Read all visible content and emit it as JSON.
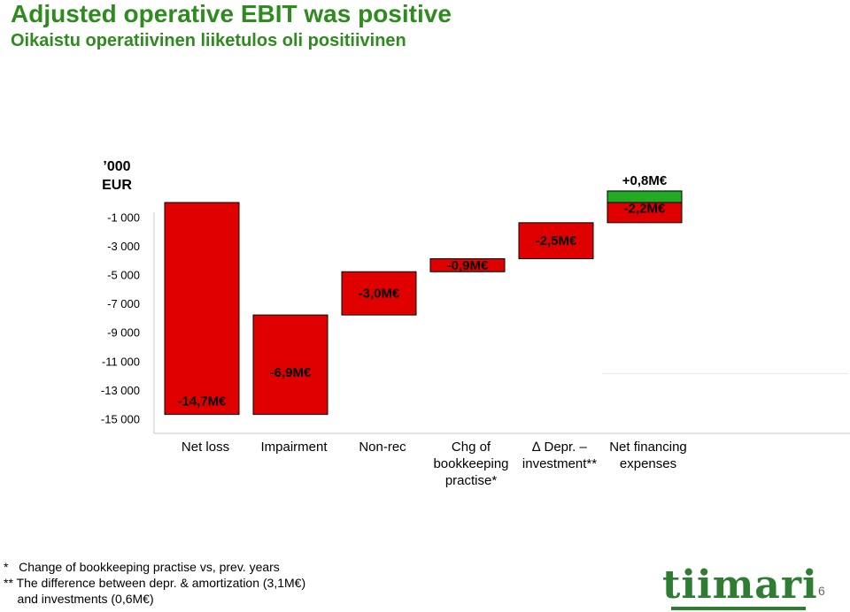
{
  "title": "Adjusted operative EBIT was positive",
  "subtitle": "Oikaistu operatiivinen liiketulos oli positiivinen",
  "page_number": "6",
  "logo_text": "tiimari",
  "footnotes": [
    "*   Change of bookkeeping practise vs, prev. years",
    "** The difference between depr. & amortization (3,1M€)",
    "    and investments (0,6M€)"
  ],
  "colors": {
    "title": "#2e8b1e",
    "negative": "#e00000",
    "positive": "#22aa22",
    "logo": "#2e7d32"
  },
  "chart_data": {
    "type": "bar",
    "subtype": "waterfall",
    "unit_label": "’000 EUR",
    "ylim": [
      -15000,
      0
    ],
    "yticks": [
      -1000,
      -3000,
      -5000,
      -7000,
      -9000,
      -11000,
      -13000,
      -15000
    ],
    "ytick_labels": [
      "-1 000",
      "-3 000",
      "-5 000",
      "-7 000",
      "-9 000",
      "-11 000",
      "-13 000",
      "-15 000"
    ],
    "grid": false,
    "categories": [
      "Net loss",
      "Impairment",
      "Non-rec",
      "Chg of bookkeeping practise*",
      "∆ Depr. – investment**",
      "Net financing expenses"
    ],
    "category_lines": [
      [
        "Net loss"
      ],
      [
        "Impairment"
      ],
      [
        "Non-rec"
      ],
      [
        "Chg of",
        "bookkeeping",
        "practise*"
      ],
      [
        "∆ Depr. –",
        "investment**"
      ],
      [
        "Net financing",
        "expenses"
      ]
    ],
    "bars": [
      {
        "start": -14700,
        "end": 0,
        "color": "#e00000",
        "label": "-14,7M€"
      },
      {
        "start": -14700,
        "end": -7800,
        "color": "#e00000",
        "label": "-6,9M€"
      },
      {
        "start": -7800,
        "end": -4800,
        "color": "#e00000",
        "label": "-3,0M€"
      },
      {
        "start": -4800,
        "end": -3900,
        "color": "#e00000",
        "label": "-0,9M€"
      },
      {
        "start": -3900,
        "end": -1400,
        "color": "#e00000",
        "label": "-2,5M€"
      },
      {
        "start": -1400,
        "end": 800,
        "color": "#e00000",
        "label": "-2,2M€",
        "overlay": {
          "start": 0,
          "end": 800,
          "color": "#22aa22",
          "label": "+0,8M€"
        }
      }
    ]
  }
}
